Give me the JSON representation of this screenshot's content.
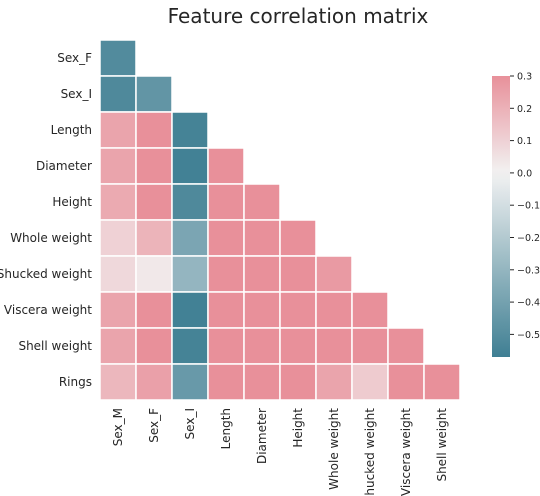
{
  "chart_data": {
    "type": "heatmap",
    "title": "Feature correlation matrix",
    "layout": "lower-triangle",
    "rows": [
      "Sex_F",
      "Sex_I",
      "Length",
      "Diameter",
      "Height",
      "Whole weight",
      "Shucked weight",
      "Viscera weight",
      "Shell weight",
      "Rings"
    ],
    "columns": [
      "Sex_M",
      "Sex_F",
      "Sex_I",
      "Length",
      "Diameter",
      "Height",
      "Whole weight",
      "Shucked weight",
      "Viscera weight",
      "Shell weight"
    ],
    "values": [
      [
        -0.51
      ],
      [
        -0.52,
        -0.46
      ],
      [
        0.24,
        0.31,
        -0.55
      ],
      [
        0.24,
        0.32,
        -0.56,
        0.3
      ],
      [
        0.22,
        0.3,
        -0.52,
        0.3,
        0.3
      ],
      [
        0.1,
        0.19,
        -0.38,
        0.3,
        0.3,
        0.3
      ],
      [
        0.08,
        0.03,
        -0.3,
        0.3,
        0.3,
        0.3,
        0.27
      ],
      [
        0.24,
        0.31,
        -0.56,
        0.3,
        0.3,
        0.3,
        0.3,
        0.3
      ],
      [
        0.24,
        0.31,
        -0.55,
        0.3,
        0.3,
        0.3,
        0.3,
        0.3,
        0.3
      ],
      [
        0.18,
        0.25,
        -0.44,
        0.3,
        0.3,
        0.3,
        0.24,
        0.12,
        0.3,
        0.3
      ]
    ],
    "colorbar": {
      "range": [
        -0.57,
        0.3
      ],
      "ticks": [
        "0.3",
        "0.2",
        "0.1",
        "0.0",
        "−0.1",
        "−0.2",
        "−0.3",
        "−0.4",
        "−0.5"
      ],
      "tick_values": [
        0.3,
        0.2,
        0.1,
        0.0,
        -0.1,
        -0.2,
        -0.3,
        -0.4,
        -0.5
      ]
    },
    "colors": {
      "negative": "#3f7f93",
      "neutral": "#f2f2f2",
      "positive": "#e8909a",
      "cell_border": "#ffffff",
      "text": "#262626"
    },
    "grid": false,
    "legend": "colorbar-right"
  }
}
